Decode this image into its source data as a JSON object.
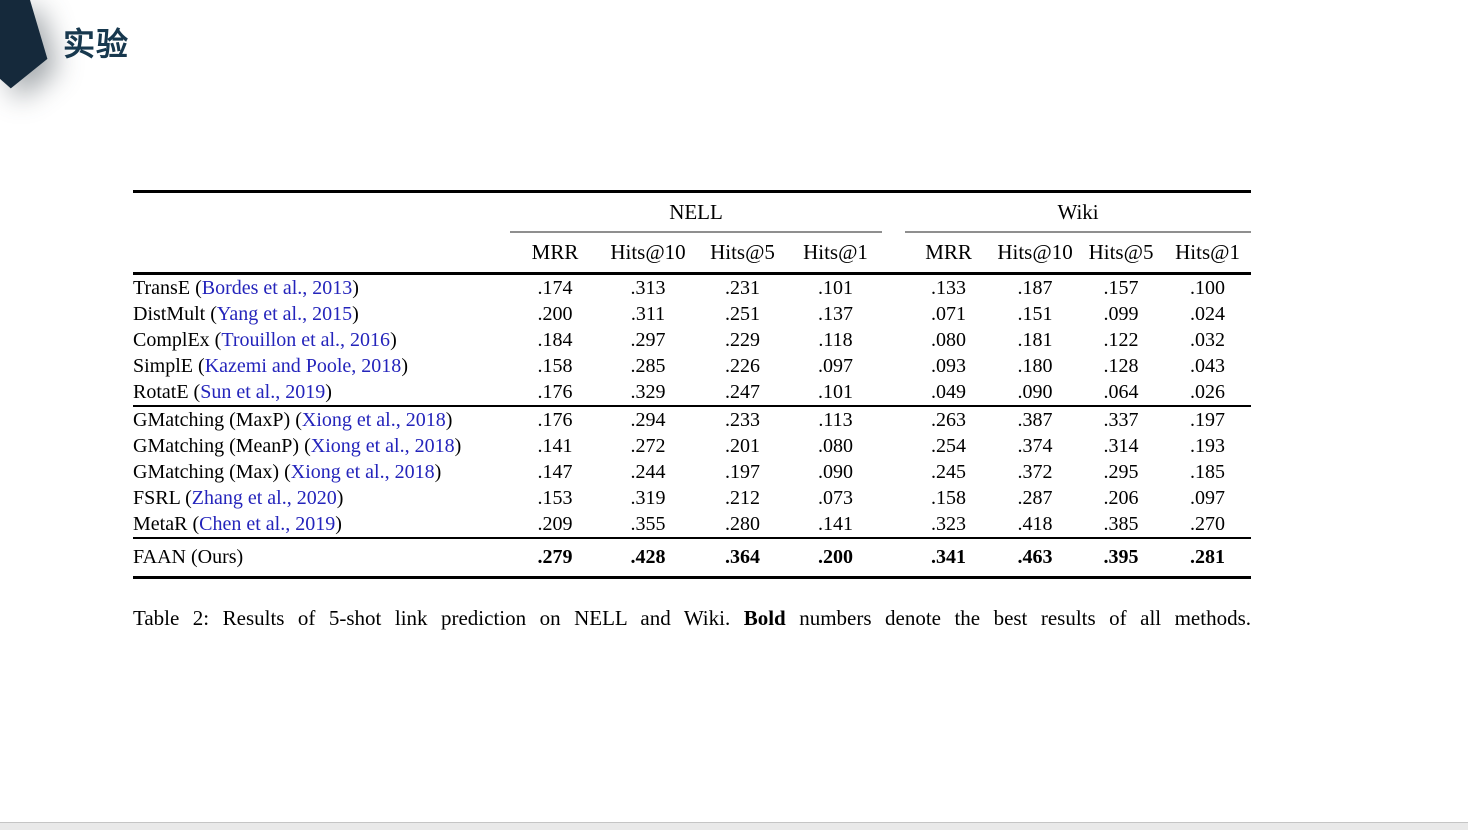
{
  "slide": {
    "title": "实验",
    "accent_color": "#15293b"
  },
  "table": {
    "group_headers": [
      "NELL",
      "Wiki"
    ],
    "col_headers": [
      "MRR",
      "Hits@10",
      "Hits@5",
      "Hits@1"
    ],
    "sections": [
      {
        "rows": [
          {
            "method": "TransE",
            "citation": "Bordes et al., 2013",
            "bold": false,
            "values": [
              ".174",
              ".313",
              ".231",
              ".101",
              ".133",
              ".187",
              ".157",
              ".100"
            ]
          },
          {
            "method": "DistMult",
            "citation": "Yang et al., 2015",
            "bold": false,
            "values": [
              ".200",
              ".311",
              ".251",
              ".137",
              ".071",
              ".151",
              ".099",
              ".024"
            ]
          },
          {
            "method": "ComplEx",
            "citation": "Trouillon et al., 2016",
            "bold": false,
            "values": [
              ".184",
              ".297",
              ".229",
              ".118",
              ".080",
              ".181",
              ".122",
              ".032"
            ]
          },
          {
            "method": "SimplE",
            "citation": "Kazemi and Poole, 2018",
            "bold": false,
            "values": [
              ".158",
              ".285",
              ".226",
              ".097",
              ".093",
              ".180",
              ".128",
              ".043"
            ]
          },
          {
            "method": "RotatE",
            "citation": "Sun et al., 2019",
            "bold": false,
            "values": [
              ".176",
              ".329",
              ".247",
              ".101",
              ".049",
              ".090",
              ".064",
              ".026"
            ]
          }
        ]
      },
      {
        "rows": [
          {
            "method": "GMatching (MaxP)",
            "citation": "Xiong et al., 2018",
            "bold": false,
            "values": [
              ".176",
              ".294",
              ".233",
              ".113",
              ".263",
              ".387",
              ".337",
              ".197"
            ]
          },
          {
            "method": "GMatching (MeanP)",
            "citation": "Xiong et al., 2018",
            "bold": false,
            "values": [
              ".141",
              ".272",
              ".201",
              ".080",
              ".254",
              ".374",
              ".314",
              ".193"
            ]
          },
          {
            "method": "GMatching (Max)",
            "citation": "Xiong et al., 2018",
            "bold": false,
            "values": [
              ".147",
              ".244",
              ".197",
              ".090",
              ".245",
              ".372",
              ".295",
              ".185"
            ]
          },
          {
            "method": "FSRL",
            "citation": "Zhang et al., 2020",
            "bold": false,
            "values": [
              ".153",
              ".319",
              ".212",
              ".073",
              ".158",
              ".287",
              ".206",
              ".097"
            ]
          },
          {
            "method": "MetaR",
            "citation": "Chen et al., 2019",
            "bold": false,
            "values": [
              ".209",
              ".355",
              ".280",
              ".141",
              ".323",
              ".418",
              ".385",
              ".270"
            ]
          }
        ]
      },
      {
        "rows": [
          {
            "method": "FAAN (Ours)",
            "citation": "",
            "bold": true,
            "values": [
              ".279",
              ".428",
              ".364",
              ".200",
              ".341",
              ".463",
              ".395",
              ".281"
            ]
          }
        ]
      }
    ],
    "caption": {
      "prefix": "Table 2: Results of 5-shot link prediction on NELL and Wiki. ",
      "bold_word": "Bold",
      "suffix": " numbers denote the best results of all methods."
    }
  },
  "chart_data": {
    "type": "table",
    "title": "Table 2: Results of 5-shot link prediction on NELL and Wiki",
    "column_groups": [
      {
        "name": "NELL",
        "columns": [
          "MRR",
          "Hits@10",
          "Hits@5",
          "Hits@1"
        ]
      },
      {
        "name": "Wiki",
        "columns": [
          "MRR",
          "Hits@10",
          "Hits@5",
          "Hits@1"
        ]
      }
    ],
    "rows": [
      {
        "method": "TransE (Bordes et al., 2013)",
        "NELL": [
          0.174,
          0.313,
          0.231,
          0.101
        ],
        "Wiki": [
          0.133,
          0.187,
          0.157,
          0.1
        ]
      },
      {
        "method": "DistMult (Yang et al., 2015)",
        "NELL": [
          0.2,
          0.311,
          0.251,
          0.137
        ],
        "Wiki": [
          0.071,
          0.151,
          0.099,
          0.024
        ]
      },
      {
        "method": "ComplEx (Trouillon et al., 2016)",
        "NELL": [
          0.184,
          0.297,
          0.229,
          0.118
        ],
        "Wiki": [
          0.08,
          0.181,
          0.122,
          0.032
        ]
      },
      {
        "method": "SimplE (Kazemi and Poole, 2018)",
        "NELL": [
          0.158,
          0.285,
          0.226,
          0.097
        ],
        "Wiki": [
          0.093,
          0.18,
          0.128,
          0.043
        ]
      },
      {
        "method": "RotatE (Sun et al., 2019)",
        "NELL": [
          0.176,
          0.329,
          0.247,
          0.101
        ],
        "Wiki": [
          0.049,
          0.09,
          0.064,
          0.026
        ]
      },
      {
        "method": "GMatching (MaxP) (Xiong et al., 2018)",
        "NELL": [
          0.176,
          0.294,
          0.233,
          0.113
        ],
        "Wiki": [
          0.263,
          0.387,
          0.337,
          0.197
        ]
      },
      {
        "method": "GMatching (MeanP) (Xiong et al., 2018)",
        "NELL": [
          0.141,
          0.272,
          0.201,
          0.08
        ],
        "Wiki": [
          0.254,
          0.374,
          0.314,
          0.193
        ]
      },
      {
        "method": "GMatching (Max) (Xiong et al., 2018)",
        "NELL": [
          0.147,
          0.244,
          0.197,
          0.09
        ],
        "Wiki": [
          0.245,
          0.372,
          0.295,
          0.185
        ]
      },
      {
        "method": "FSRL (Zhang et al., 2020)",
        "NELL": [
          0.153,
          0.319,
          0.212,
          0.073
        ],
        "Wiki": [
          0.158,
          0.287,
          0.206,
          0.097
        ]
      },
      {
        "method": "MetaR (Chen et al., 2019)",
        "NELL": [
          0.209,
          0.355,
          0.28,
          0.141
        ],
        "Wiki": [
          0.323,
          0.418,
          0.385,
          0.27
        ]
      },
      {
        "method": "FAAN (Ours)",
        "NELL": [
          0.279,
          0.428,
          0.364,
          0.2
        ],
        "Wiki": [
          0.341,
          0.463,
          0.395,
          0.281
        ]
      }
    ],
    "bold_row": "FAAN (Ours)"
  }
}
